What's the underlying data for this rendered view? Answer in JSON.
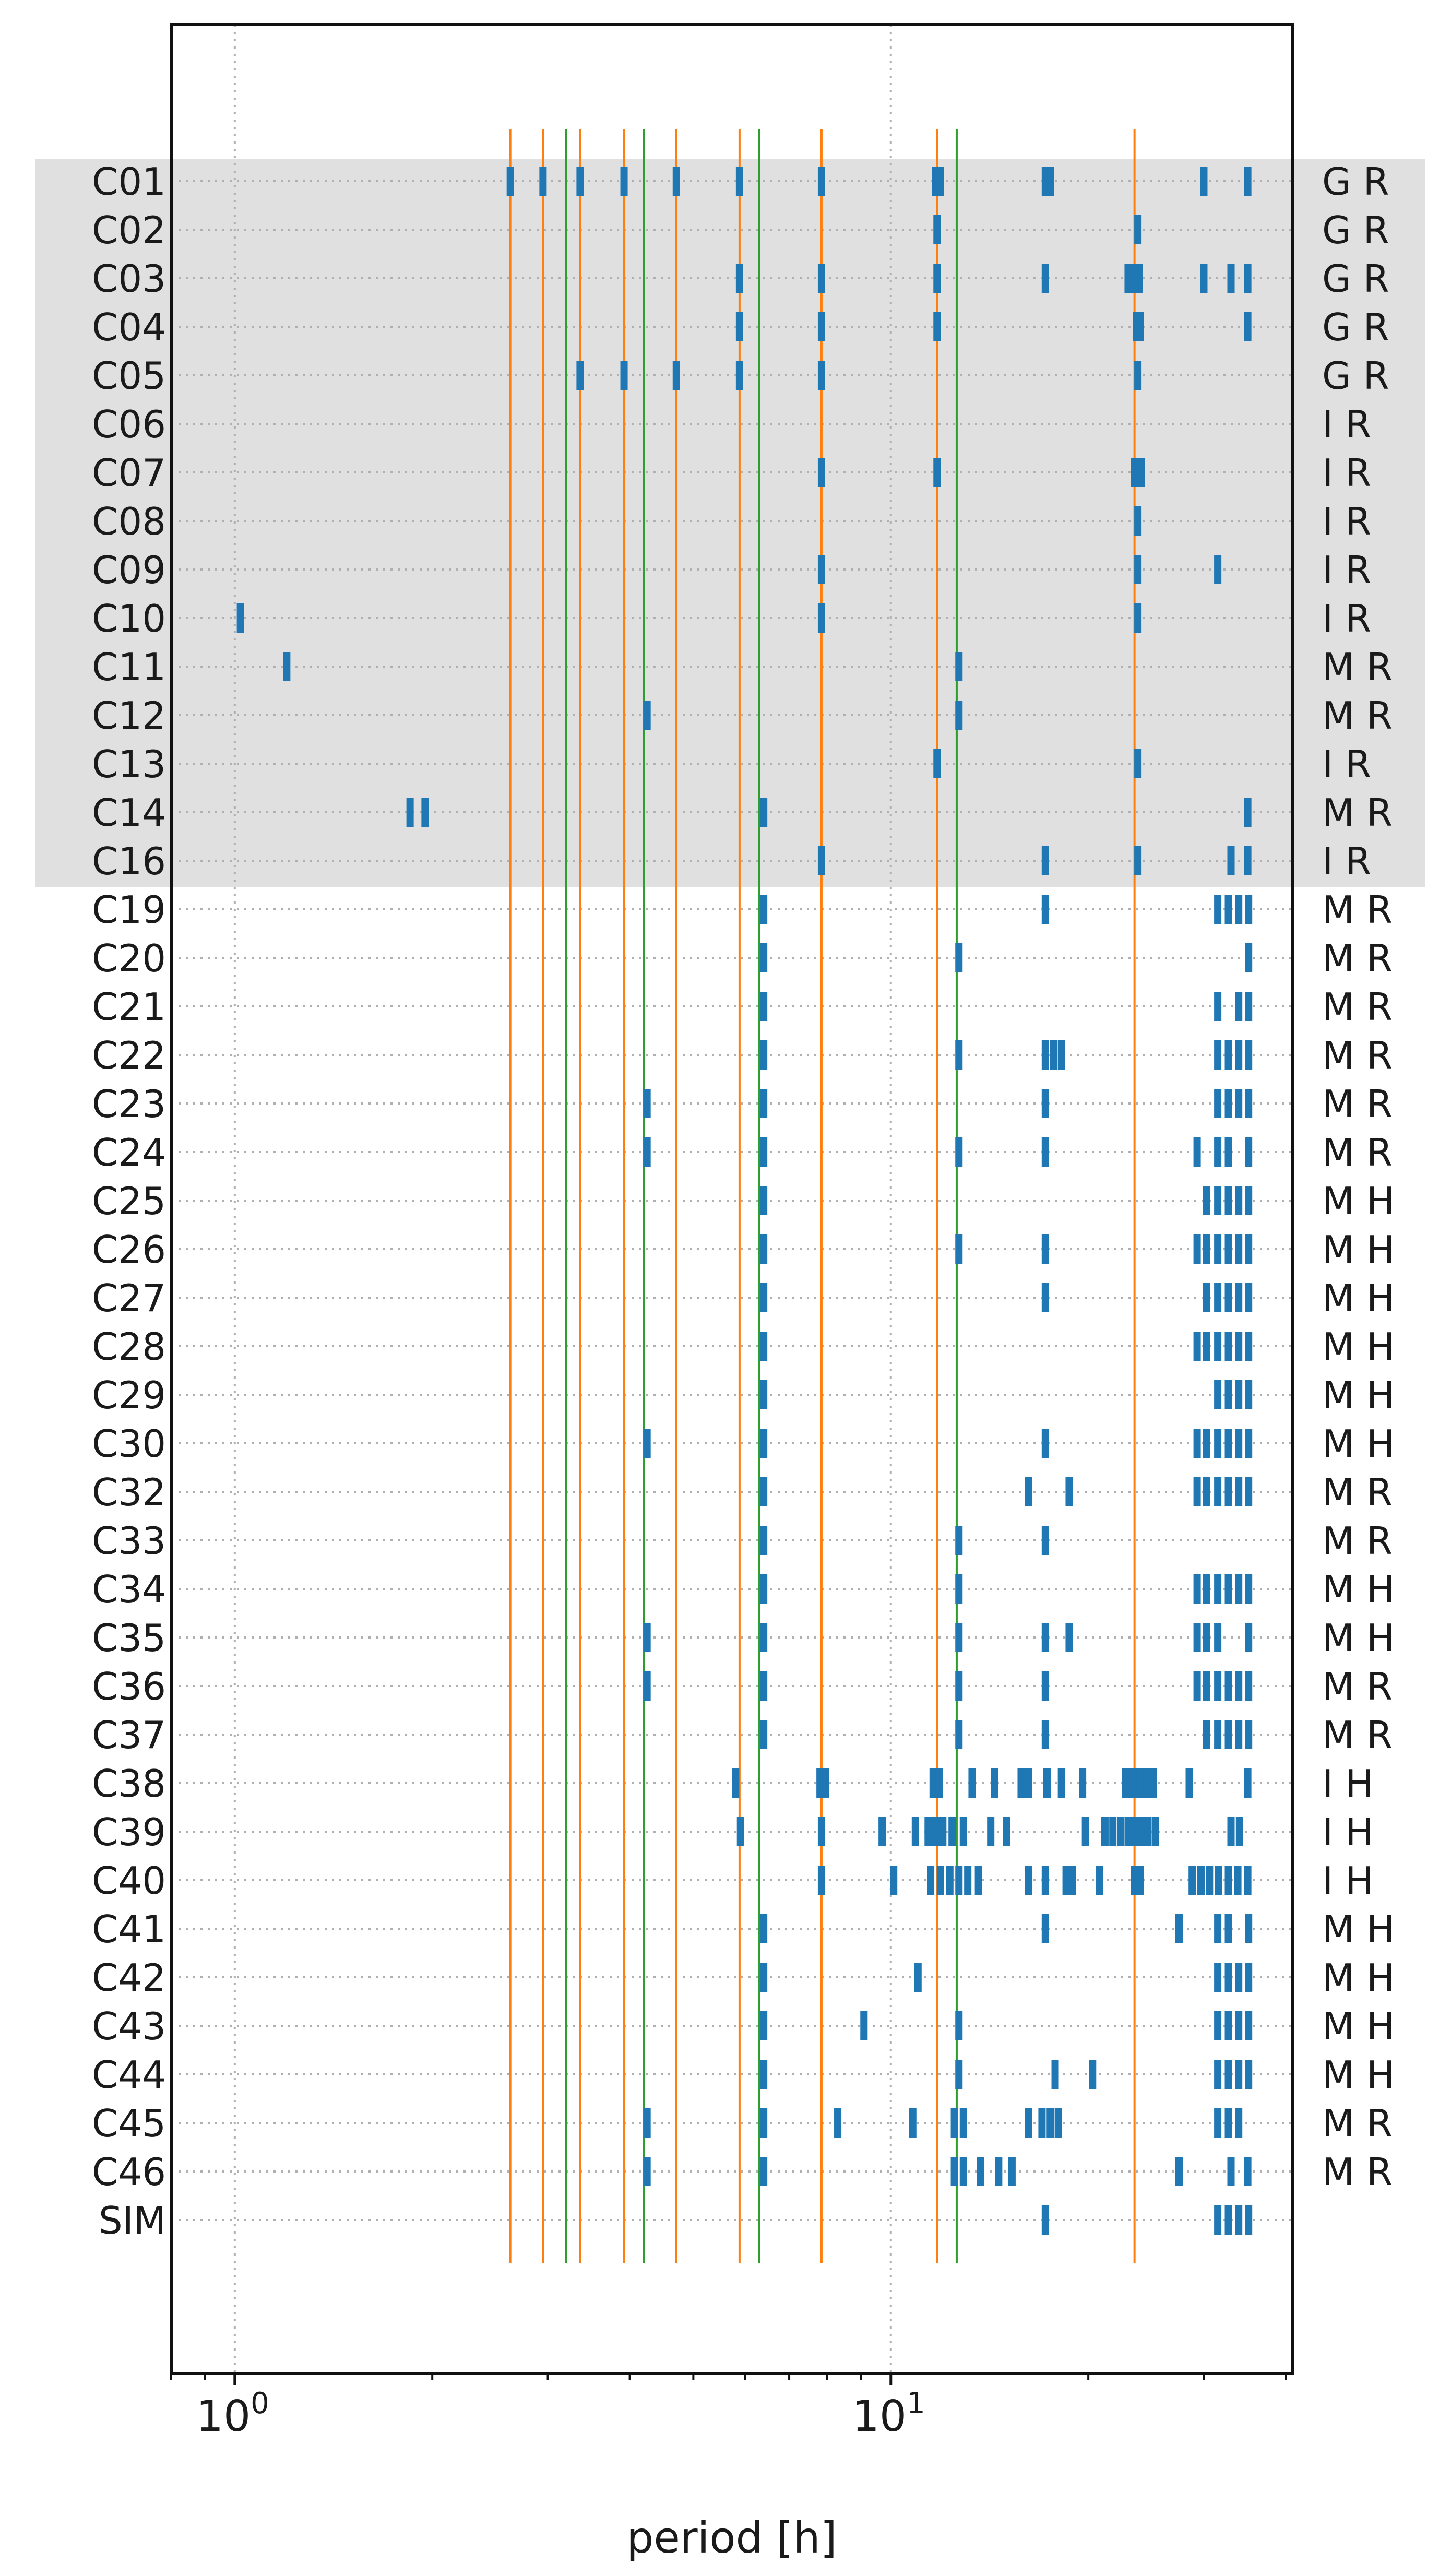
{
  "chart_data": {
    "type": "event-plot",
    "xlabel": "period [h]",
    "ylabel": "",
    "title": "",
    "xscale": "log",
    "xlim": [
      0.8,
      41
    ],
    "x_ticks": [
      {
        "value": 1,
        "base": "10",
        "exp": "0"
      },
      {
        "value": 10,
        "base": "10",
        "exp": "1"
      }
    ],
    "grid": "vertical dotted at decades, horizontal dotted per row",
    "vlines_orange": [
      2.63,
      2.95,
      3.36,
      3.92,
      4.71,
      5.88,
      7.84,
      11.76,
      23.52
    ],
    "vlines_green": [
      3.2,
      4.2,
      6.3,
      12.6
    ],
    "highlighted_rows": [
      "C01",
      "C02",
      "C03",
      "C04",
      "C05",
      "C06",
      "C07",
      "C08",
      "C09",
      "C10",
      "C11",
      "C12",
      "C13",
      "C14",
      "C16"
    ],
    "rows": [
      {
        "label": "C01",
        "classes": "G R",
        "periods": [
          2.63,
          2.95,
          3.36,
          3.92,
          4.71,
          5.88,
          7.84,
          11.7,
          11.8,
          11.9,
          17.2,
          17.5,
          30,
          35
        ]
      },
      {
        "label": "C02",
        "classes": "G R",
        "periods": [
          11.76,
          23.8
        ]
      },
      {
        "label": "C03",
        "classes": "G R",
        "periods": [
          5.88,
          7.84,
          11.76,
          17.2,
          23.0,
          23.3,
          23.6,
          23.9,
          30,
          33,
          35
        ]
      },
      {
        "label": "C04",
        "classes": "G R",
        "periods": [
          5.88,
          7.84,
          11.76,
          23.7,
          24.0,
          35
        ]
      },
      {
        "label": "C05",
        "classes": "G R",
        "periods": [
          3.36,
          3.92,
          4.71,
          5.88,
          7.84,
          23.8
        ]
      },
      {
        "label": "C06",
        "classes": "I R",
        "periods": []
      },
      {
        "label": "C07",
        "classes": "I R",
        "periods": [
          7.84,
          11.76,
          23.5,
          23.8,
          24.1
        ]
      },
      {
        "label": "C08",
        "classes": "I R",
        "periods": [
          23.8
        ]
      },
      {
        "label": "C09",
        "classes": "I R",
        "periods": [
          7.84,
          23.8,
          31.5
        ]
      },
      {
        "label": "C10",
        "classes": "I R",
        "periods": [
          1.02,
          7.84,
          23.8
        ]
      },
      {
        "label": "C11",
        "classes": "M R",
        "periods": [
          1.2,
          12.7
        ]
      },
      {
        "label": "C12",
        "classes": "M R",
        "periods": [
          4.25,
          12.7
        ]
      },
      {
        "label": "C13",
        "classes": "I R",
        "periods": [
          11.76,
          23.8
        ]
      },
      {
        "label": "C14",
        "classes": "M R",
        "periods": [
          1.85,
          1.95,
          6.4,
          35
        ]
      },
      {
        "label": "C16",
        "classes": "I R",
        "periods": [
          7.84,
          17.2,
          23.8,
          33,
          35
        ]
      },
      {
        "label": "C19",
        "classes": "M R",
        "periods": [
          6.4,
          17.2,
          31.5,
          32.7,
          33.9,
          35.1
        ]
      },
      {
        "label": "C20",
        "classes": "M R",
        "periods": [
          6.4,
          12.7,
          35.1
        ]
      },
      {
        "label": "C21",
        "classes": "M R",
        "periods": [
          6.4,
          31.5,
          33.9,
          35.1
        ]
      },
      {
        "label": "C22",
        "classes": "M R",
        "periods": [
          6.4,
          12.7,
          17.2,
          17.7,
          18.2,
          31.5,
          32.7,
          33.9,
          35.1
        ]
      },
      {
        "label": "C23",
        "classes": "M R",
        "periods": [
          4.25,
          6.4,
          17.2,
          31.5,
          32.7,
          33.9,
          35.1
        ]
      },
      {
        "label": "C24",
        "classes": "M R",
        "periods": [
          4.25,
          6.4,
          12.7,
          17.2,
          29.3,
          31.5,
          32.7,
          35.1
        ]
      },
      {
        "label": "C25",
        "classes": "M H",
        "periods": [
          6.4,
          30.3,
          31.5,
          32.7,
          33.9,
          35.1
        ]
      },
      {
        "label": "C26",
        "classes": "M H",
        "periods": [
          6.4,
          12.7,
          17.2,
          29.3,
          30.3,
          31.5,
          32.7,
          33.9,
          35.1
        ]
      },
      {
        "label": "C27",
        "classes": "M H",
        "periods": [
          6.4,
          17.2,
          30.3,
          31.5,
          32.7,
          33.9,
          35.1
        ]
      },
      {
        "label": "C28",
        "classes": "M H",
        "periods": [
          6.4,
          29.3,
          30.3,
          31.5,
          32.7,
          33.9,
          35.1
        ]
      },
      {
        "label": "C29",
        "classes": "M H",
        "periods": [
          6.4,
          31.5,
          32.7,
          33.9,
          35.1
        ]
      },
      {
        "label": "C30",
        "classes": "M H",
        "periods": [
          4.25,
          6.4,
          17.2,
          29.3,
          30.3,
          31.5,
          32.7,
          33.9,
          35.1
        ]
      },
      {
        "label": "C32",
        "classes": "M R",
        "periods": [
          6.4,
          16.2,
          18.7,
          29.3,
          30.3,
          31.5,
          32.7,
          33.9,
          35.1
        ]
      },
      {
        "label": "C33",
        "classes": "M R",
        "periods": [
          6.4,
          12.7,
          17.2
        ]
      },
      {
        "label": "C34",
        "classes": "M H",
        "periods": [
          6.4,
          12.7,
          29.3,
          30.3,
          31.5,
          32.7,
          33.9,
          35.1
        ]
      },
      {
        "label": "C35",
        "classes": "M H",
        "periods": [
          4.25,
          6.4,
          12.7,
          17.2,
          18.7,
          29.3,
          30.3,
          31.5,
          35.1
        ]
      },
      {
        "label": "C36",
        "classes": "M R",
        "periods": [
          4.25,
          6.4,
          12.7,
          17.2,
          29.3,
          30.3,
          31.5,
          32.7,
          33.9,
          35.1
        ]
      },
      {
        "label": "C37",
        "classes": "M R",
        "periods": [
          6.4,
          12.7,
          17.2,
          30.3,
          31.5,
          32.7,
          33.9,
          35.1
        ]
      },
      {
        "label": "C38",
        "classes": "I H",
        "periods": [
          5.8,
          7.8,
          7.95,
          11.6,
          11.85,
          13.3,
          14.4,
          15.8,
          16.2,
          17.3,
          18.2,
          19.6,
          22.8,
          23.2,
          23.6,
          24.0,
          24.5,
          25.1,
          28.5,
          35
        ]
      },
      {
        "label": "C39",
        "classes": "I H",
        "periods": [
          5.9,
          7.84,
          9.7,
          10.9,
          11.4,
          11.7,
          12.0,
          12.4,
          12.9,
          14.2,
          15.0,
          19.8,
          21.2,
          21.8,
          22.4,
          23.0,
          23.5,
          24.0,
          24.6,
          25.3,
          33,
          34
        ]
      },
      {
        "label": "C40",
        "classes": "I H",
        "periods": [
          7.84,
          10.1,
          11.5,
          11.9,
          12.3,
          12.7,
          13.1,
          13.6,
          16.2,
          17.2,
          18.5,
          18.9,
          20.8,
          23.5,
          24.0,
          28.8,
          29.7,
          30.6,
          31.6,
          32.7,
          33.8,
          35
        ]
      },
      {
        "label": "C41",
        "classes": "M H",
        "periods": [
          6.4,
          17.2,
          27.5,
          31.5,
          32.7,
          35.1
        ]
      },
      {
        "label": "C42",
        "classes": "M H",
        "periods": [
          6.4,
          11.0,
          31.5,
          32.7,
          33.9,
          35.1
        ]
      },
      {
        "label": "C43",
        "classes": "M H",
        "periods": [
          6.4,
          9.1,
          12.7,
          31.5,
          32.7,
          33.9,
          35.1
        ]
      },
      {
        "label": "C44",
        "classes": "M H",
        "periods": [
          6.4,
          12.7,
          17.8,
          20.3,
          31.5,
          32.7,
          33.9,
          35.1
        ]
      },
      {
        "label": "C45",
        "classes": "M R",
        "periods": [
          4.25,
          6.4,
          8.3,
          10.8,
          12.5,
          12.9,
          16.2,
          17.0,
          17.5,
          18.0,
          31.5,
          32.7,
          33.9
        ]
      },
      {
        "label": "C46",
        "classes": "M R",
        "periods": [
          4.25,
          6.4,
          12.5,
          12.9,
          13.7,
          14.6,
          15.3,
          27.5,
          33,
          35
        ]
      },
      {
        "label": "SIM",
        "classes": "",
        "periods": [
          17.2,
          31.5,
          32.7,
          33.9,
          35.1
        ]
      }
    ]
  }
}
